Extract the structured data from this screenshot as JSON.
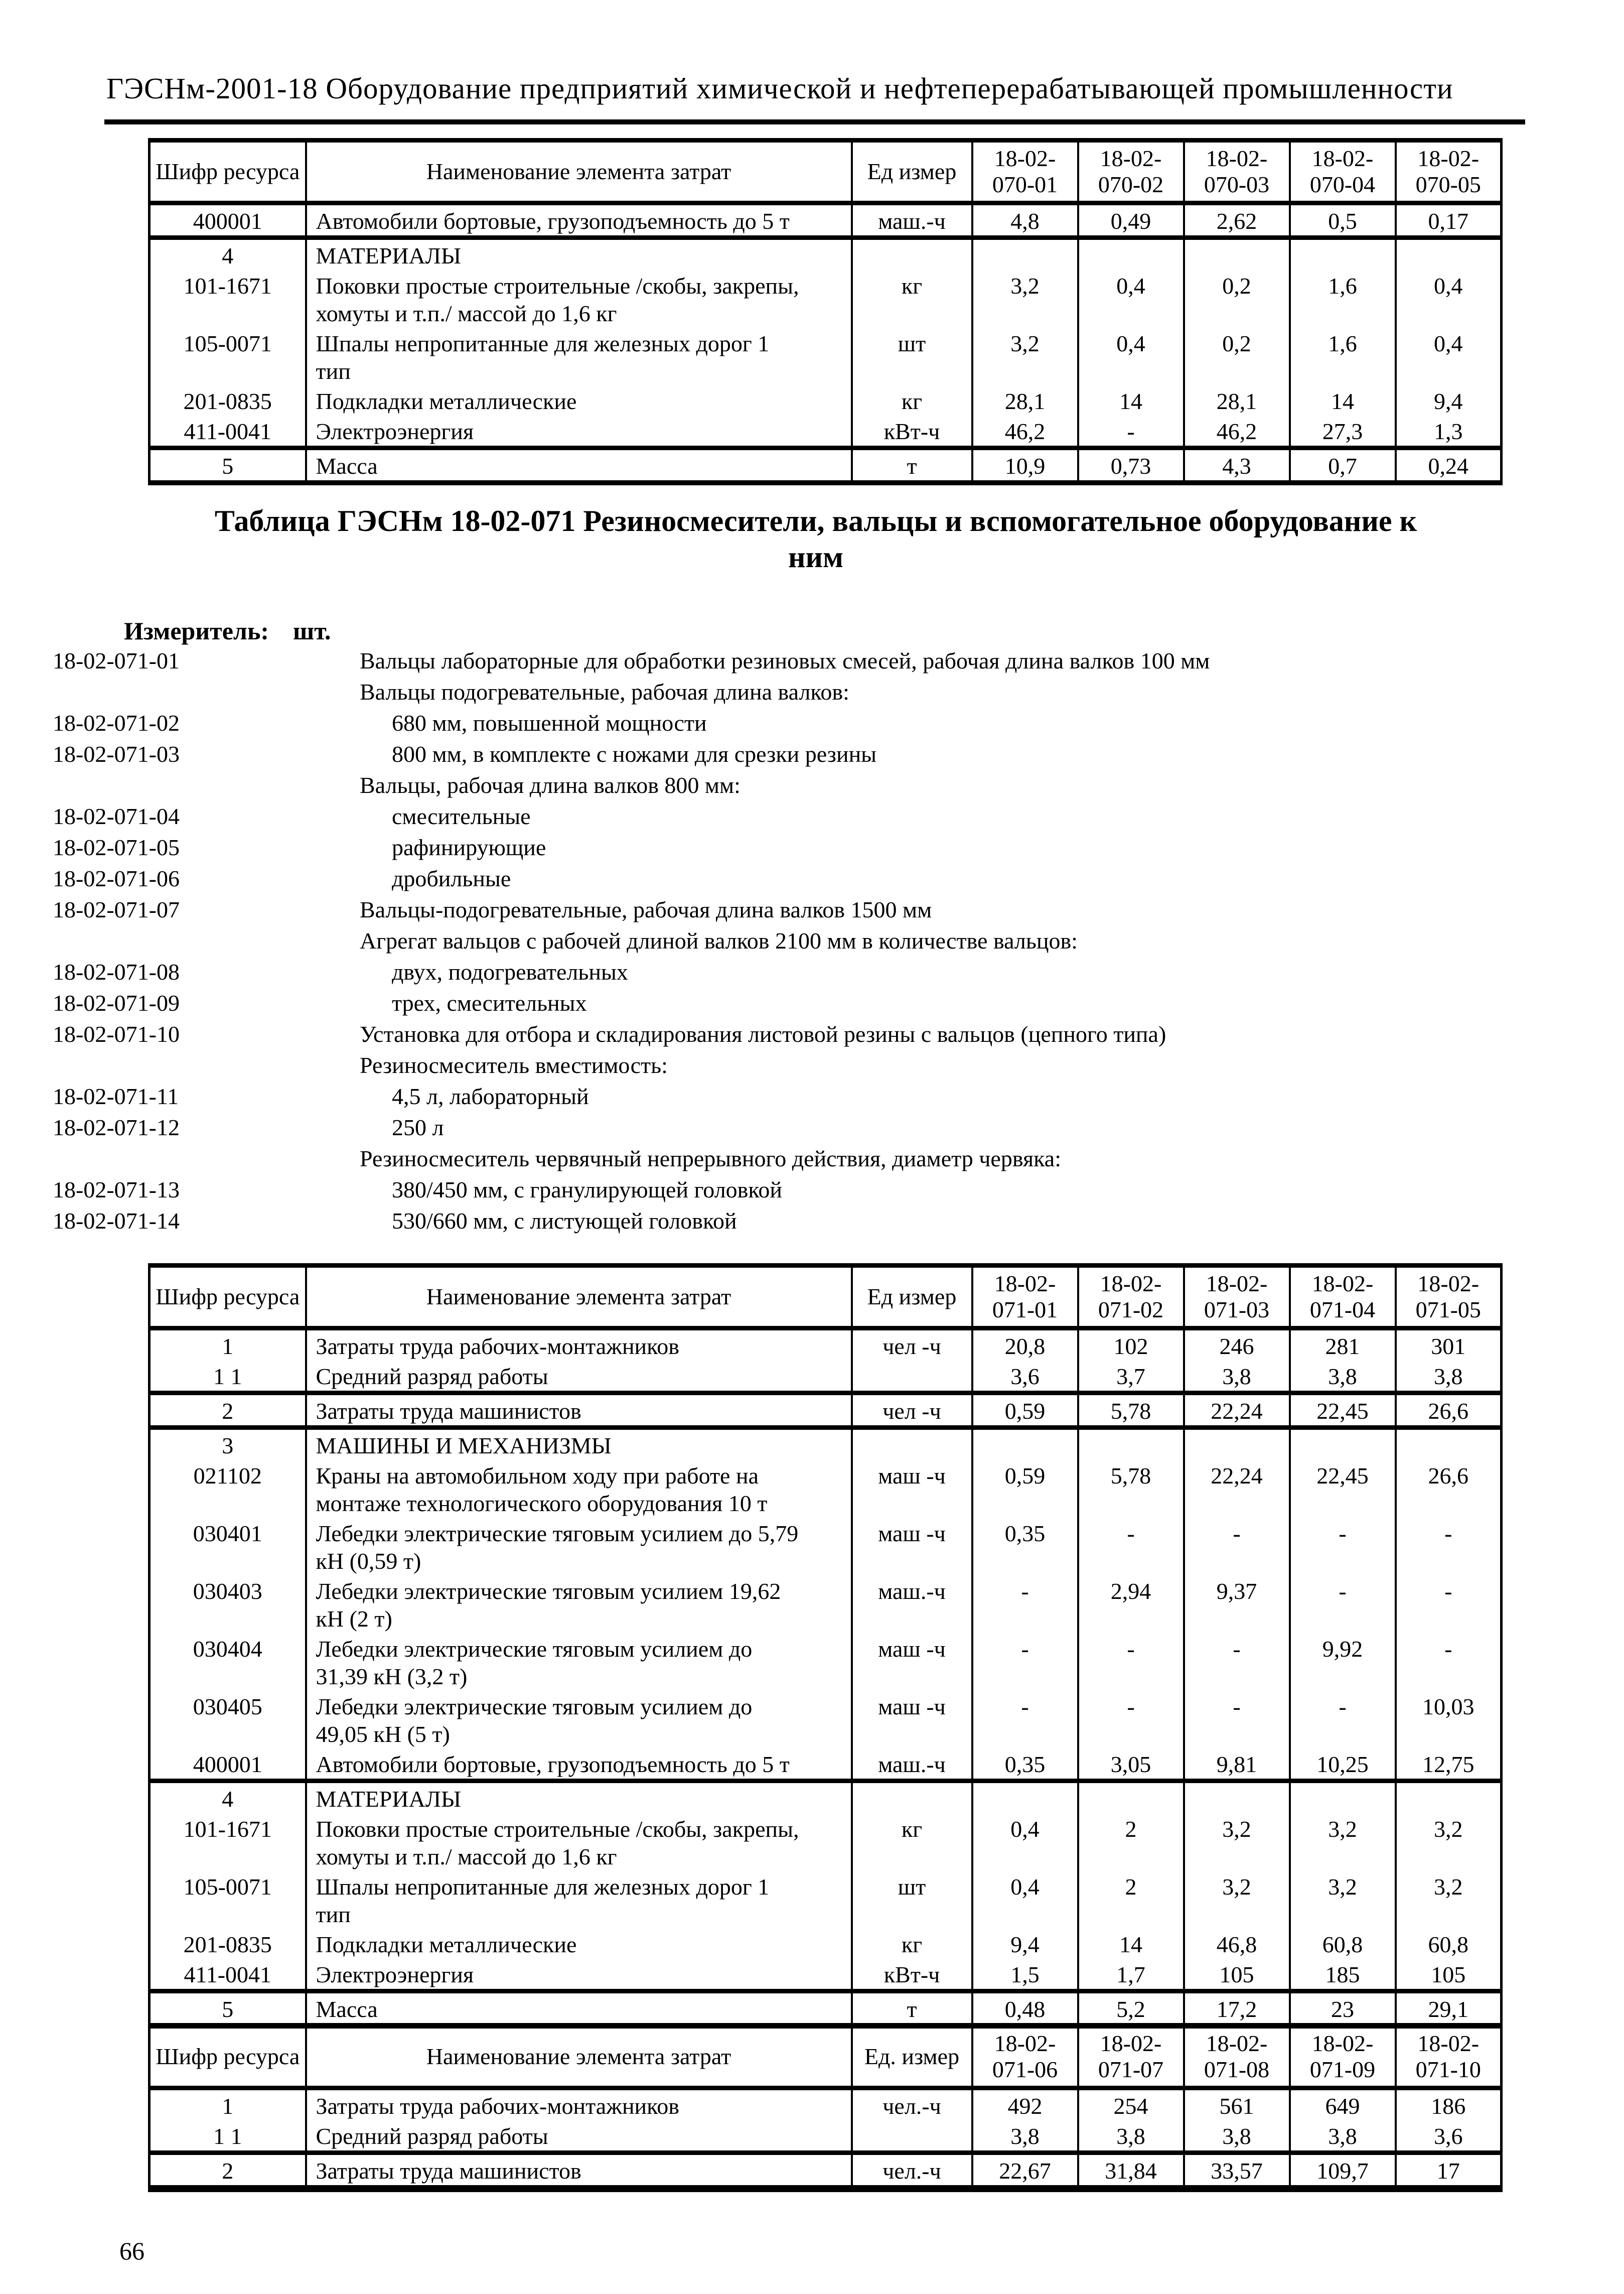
{
  "page": {
    "header": "ГЭСНм-2001-18 Оборудование предприятий химической и нефтеперерабатывающей промышленности",
    "page_number": "66"
  },
  "section": {
    "title": "Таблица ГЭСНм 18-02-071 Резиносмесители, вальцы и вспомогательное оборудование к\nним",
    "measure_label": "Измеритель:",
    "measure_value": "шт.",
    "items": [
      {
        "code": "18-02-071-01",
        "text": "Вальцы лабораторные для обработки резиновых смесей, рабочая длина валков 100 мм",
        "indent": false
      },
      {
        "code": "",
        "text": "Вальцы подогревательные, рабочая длина валков:",
        "indent": false
      },
      {
        "code": "18-02-071-02",
        "text": "680 мм, повышенной мощности",
        "indent": true
      },
      {
        "code": "18-02-071-03",
        "text": "800 мм, в комплекте с ножами для срезки резины",
        "indent": true
      },
      {
        "code": "",
        "text": "Вальцы, рабочая длина валков 800 мм:",
        "indent": false
      },
      {
        "code": "18-02-071-04",
        "text": "смесительные",
        "indent": true
      },
      {
        "code": "18-02-071-05",
        "text": "рафинирующие",
        "indent": true
      },
      {
        "code": "18-02-071-06",
        "text": "дробильные",
        "indent": true
      },
      {
        "code": "18-02-071-07",
        "text": "Вальцы-подогревательные, рабочая длина валков 1500 мм",
        "indent": false
      },
      {
        "code": "",
        "text": "Агрегат вальцов с рабочей длиной валков 2100 мм в количестве вальцов:",
        "indent": false
      },
      {
        "code": "18-02-071-08",
        "text": "двух, подогревательных",
        "indent": true
      },
      {
        "code": "18-02-071-09",
        "text": "трех, смесительных",
        "indent": true
      },
      {
        "code": "18-02-071-10",
        "text": "Установка для отбора и складирования листовой резины с вальцов (цепного типа)",
        "indent": false
      },
      {
        "code": "",
        "text": "Резиносмеситель вместимость:",
        "indent": false
      },
      {
        "code": "18-02-071-11",
        "text": "4,5 л, лабораторный",
        "indent": true
      },
      {
        "code": "18-02-071-12",
        "text": "250 л",
        "indent": true
      },
      {
        "code": "",
        "text": "Резиносмеситель червячный непрерывного действия, диаметр червяка:",
        "indent": false
      },
      {
        "code": "18-02-071-13",
        "text": "380/450 мм, с гранулирующей головкой",
        "indent": true
      },
      {
        "code": "18-02-071-14",
        "text": "530/660 мм, с листующей головкой",
        "indent": true
      }
    ]
  },
  "tables": [
    {
      "headers": [
        "Шифр ресурса",
        "Наименование элемента затрат",
        "Ед  измер",
        "18-02-\n070-01",
        "18-02-\n070-02",
        "18-02-\n070-03",
        "18-02-\n070-04",
        "18-02-\n070-05"
      ],
      "rows": [
        {
          "cells": [
            "400001",
            "Автомобили бортовые, грузоподъемность до 5 т",
            "маш.-ч",
            "4,8",
            "0,49",
            "2,62",
            "0,5",
            "0,17"
          ],
          "sep": true
        },
        {
          "cells": [
            "4",
            "МАТЕРИАЛЫ",
            "",
            "",
            "",
            "",
            "",
            ""
          ],
          "b0": true,
          "b1": true
        },
        {
          "cells": [
            "101-1671",
            "Поковки простые строительные /скобы, закрепы,\nхомуты и т.п./ массой до 1,6 кг",
            "кг",
            "3,2",
            "0,4",
            "0,2",
            "1,6",
            "0,4"
          ],
          "h2": true
        },
        {
          "cells": [
            "105-0071",
            "Шпалы непропитанные для железных дорог 1\nтип",
            "шт",
            "3,2",
            "0,4",
            "0,2",
            "1,6",
            "0,4"
          ],
          "h2": true
        },
        {
          "cells": [
            "201-0835",
            "Подкладки металлические",
            "кг",
            "28,1",
            "14",
            "28,1",
            "14",
            "9,4"
          ]
        },
        {
          "cells": [
            "411-0041",
            "Электроэнергия",
            "кВт-ч",
            "46,2",
            "-",
            "46,2",
            "27,3",
            "1,3"
          ],
          "sep": true
        },
        {
          "cells": [
            "5",
            "Масса",
            "т",
            "10,9",
            "0,73",
            "4,3",
            "0,7",
            "0,24"
          ],
          "b0": true
        }
      ]
    },
    {
      "headers": [
        "Шифр ресурса",
        "Наименование элемента затрат",
        "Ед  измер",
        "18-02-\n071-01",
        "18-02-\n071-02",
        "18-02-\n071-03",
        "18-02-\n071-04",
        "18-02-\n071-05"
      ],
      "rows": [
        {
          "cells": [
            "1",
            "Затраты труда рабочих-монтажников",
            "чел -ч",
            "20,8",
            "102",
            "246",
            "281",
            "301"
          ],
          "b0": true
        },
        {
          "cells": [
            "1 1",
            "Средний разряд работы",
            "",
            "3,6",
            "3,7",
            "3,8",
            "3,8",
            "3,8"
          ],
          "b0": true,
          "sep": true
        },
        {
          "cells": [
            "2",
            "Затраты труда машинистов",
            "чел -ч",
            "0,59",
            "5,78",
            "22,24",
            "22,45",
            "26,6"
          ],
          "b0": true,
          "sep": true
        },
        {
          "cells": [
            "3",
            "МАШИНЫ И МЕХАНИЗМЫ",
            "",
            "",
            "",
            "",
            "",
            ""
          ],
          "b0": true,
          "b1": true
        },
        {
          "cells": [
            "021102",
            "Краны на автомобильном ходу при работе на\nмонтаже технологического оборудования 10 т",
            "маш -ч",
            "0,59",
            "5,78",
            "22,24",
            "22,45",
            "26,6"
          ],
          "h2": true
        },
        {
          "cells": [
            "030401",
            "Лебедки электрические тяговым усилием до 5,79\nкН (0,59 т)",
            "маш -ч",
            "0,35",
            "-",
            "-",
            "-",
            "-"
          ],
          "h2": true
        },
        {
          "cells": [
            "030403",
            "Лебедки электрические тяговым усилием 19,62\nкН (2 т)",
            "маш.-ч",
            "-",
            "2,94",
            "9,37",
            "-",
            "-"
          ],
          "h2": true
        },
        {
          "cells": [
            "030404",
            "Лебедки электрические тяговым усилием до\n31,39 кН (3,2 т)",
            "маш -ч",
            "-",
            "-",
            "-",
            "9,92",
            "-"
          ],
          "h2": true
        },
        {
          "cells": [
            "030405",
            "Лебедки электрические тяговым усилием до\n49,05 кН (5 т)",
            "маш -ч",
            "-",
            "-",
            "-",
            "-",
            "10,03"
          ],
          "h2": true
        },
        {
          "cells": [
            "400001",
            "Автомобили бортовые, грузоподъемность до 5 т",
            "маш.-ч",
            "0,35",
            "3,05",
            "9,81",
            "10,25",
            "12,75"
          ],
          "sep": true
        },
        {
          "cells": [
            "4",
            "МАТЕРИАЛЫ",
            "",
            "",
            "",
            "",
            "",
            ""
          ],
          "b0": true,
          "b1": true
        },
        {
          "cells": [
            "101-1671",
            "Поковки простые строительные /скобы, закрепы,\nхомуты и т.п./ массой до 1,6 кг",
            "кг",
            "0,4",
            "2",
            "3,2",
            "3,2",
            "3,2"
          ],
          "h2": true
        },
        {
          "cells": [
            "105-0071",
            "Шпалы непропитанные для железных дорог 1\nтип",
            "шт",
            "0,4",
            "2",
            "3,2",
            "3,2",
            "3,2"
          ],
          "h2": true
        },
        {
          "cells": [
            "201-0835",
            "Подкладки металлические",
            "кг",
            "9,4",
            "14",
            "46,8",
            "60,8",
            "60,8"
          ]
        },
        {
          "cells": [
            "411-0041",
            "Электроэнергия",
            "кВт-ч",
            "1,5",
            "1,7",
            "105",
            "185",
            "105"
          ],
          "sep": true
        },
        {
          "cells": [
            "5",
            "Масса",
            "т",
            "0,48",
            "5,2",
            "17,2",
            "23",
            "29,1"
          ],
          "b0": true
        }
      ]
    },
    {
      "headers": [
        "Шифр ресурса",
        "Наименование элемента затрат",
        "Ед. измер",
        "18-02-\n071-06",
        "18-02-\n071-07",
        "18-02-\n071-08",
        "18-02-\n071-09",
        "18-02-\n071-10"
      ],
      "rows": [
        {
          "cells": [
            "1",
            "Затраты труда рабочих-монтажников",
            "чел.-ч",
            "492",
            "254",
            "561",
            "649",
            "186"
          ],
          "b0": true
        },
        {
          "cells": [
            "1 1",
            "Средний разряд работы",
            "",
            "3,8",
            "3,8",
            "3,8",
            "3,8",
            "3,6"
          ],
          "b0": true,
          "sep": true
        },
        {
          "cells": [
            "2",
            "Затраты труда машинистов",
            "чел.-ч",
            "22,67",
            "31,84",
            "33,57",
            "109,7",
            "17"
          ],
          "b0": true
        }
      ]
    }
  ]
}
